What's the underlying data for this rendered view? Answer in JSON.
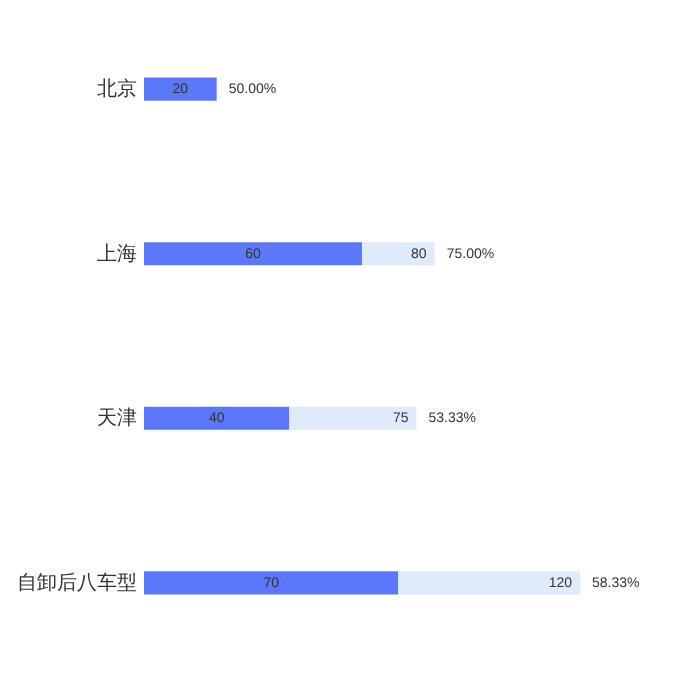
{
  "chart_data": {
    "type": "bar",
    "orientation": "horizontal",
    "stacked": true,
    "categories": [
      "北京",
      "上海",
      "天津",
      "自卸后八车型"
    ],
    "series": [
      {
        "color": "#5b78fb",
        "values": [
          20,
          60,
          40,
          70
        ],
        "value_labels": [
          "20",
          "60",
          "40",
          "70"
        ]
      },
      {
        "color": "#dfeafc",
        "values": [
          null,
          20,
          35,
          50
        ]
      }
    ],
    "totals": [
      null,
      "80",
      "75",
      "120"
    ],
    "annotations": [
      "50.00%",
      "75.00%",
      "53.33%",
      "58.33%"
    ]
  }
}
